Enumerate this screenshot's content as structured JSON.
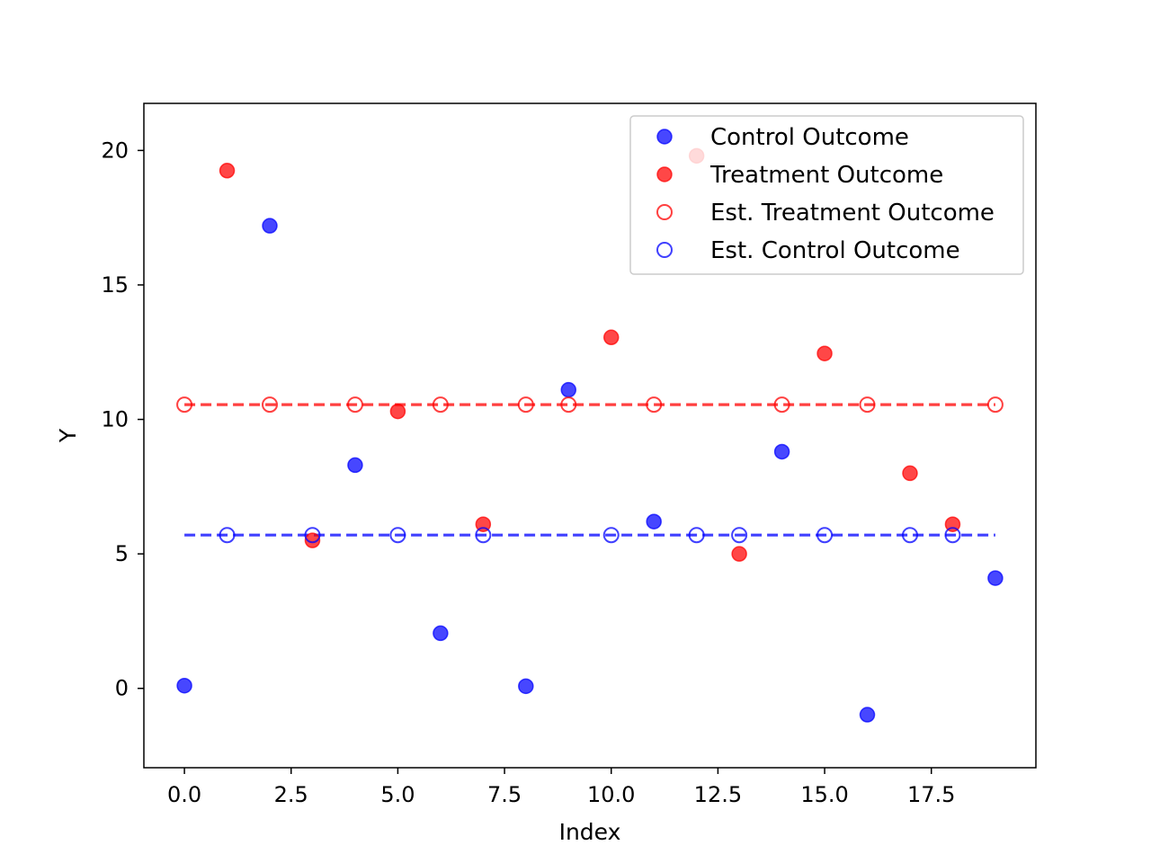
{
  "chart_data": {
    "type": "scatter",
    "xlabel": "Index",
    "ylabel": "Y",
    "xlim": [
      -0.95,
      19.95
    ],
    "ylim": [
      -2.95,
      21.75
    ],
    "xticks": [
      0.0,
      2.5,
      5.0,
      7.5,
      10.0,
      12.5,
      15.0,
      17.5
    ],
    "xtick_labels": [
      "0.0",
      "2.5",
      "5.0",
      "7.5",
      "10.0",
      "12.5",
      "15.0",
      "17.5"
    ],
    "yticks": [
      0,
      5,
      10,
      15,
      20
    ],
    "ytick_labels": [
      "0",
      "5",
      "10",
      "15",
      "20"
    ],
    "grid": false,
    "legend_position": "top-right",
    "series": [
      {
        "name": "Control Outcome",
        "marker": "filled-circle",
        "color": "#0000ff",
        "x": [
          0,
          2,
          4,
          6,
          8,
          9,
          11,
          14,
          16,
          19
        ],
        "y": [
          0.1,
          17.2,
          8.3,
          2.05,
          0.08,
          11.1,
          6.2,
          8.8,
          -0.98,
          4.1
        ]
      },
      {
        "name": "Treatment Outcome",
        "marker": "filled-circle",
        "color": "#ff0000",
        "x": [
          1,
          3,
          5,
          7,
          10,
          12,
          13,
          15,
          17,
          18
        ],
        "y": [
          19.25,
          5.5,
          10.3,
          6.1,
          13.05,
          19.8,
          5.0,
          12.45,
          8.0,
          6.1
        ]
      },
      {
        "name": "Est. Treatment Outcome",
        "marker": "open-circle",
        "color": "#ff0000",
        "x": [
          0,
          2,
          4,
          6,
          8,
          9,
          11,
          14,
          16,
          19
        ],
        "y": [
          10.55,
          10.55,
          10.55,
          10.55,
          10.55,
          10.55,
          10.55,
          10.55,
          10.55,
          10.55
        ]
      },
      {
        "name": "Est. Control Outcome",
        "marker": "open-circle",
        "color": "#0000ff",
        "x": [
          1,
          3,
          5,
          7,
          10,
          12,
          13,
          15,
          17,
          18
        ],
        "y": [
          5.7,
          5.7,
          5.7,
          5.7,
          5.7,
          5.7,
          5.7,
          5.7,
          5.7,
          5.7
        ]
      }
    ],
    "reference_lines": [
      {
        "y": 10.55,
        "x_range": [
          0,
          19
        ],
        "style": "dashed",
        "color": "#ff0000"
      },
      {
        "y": 5.7,
        "x_range": [
          0,
          19
        ],
        "style": "dashed",
        "color": "#0000ff"
      }
    ]
  }
}
